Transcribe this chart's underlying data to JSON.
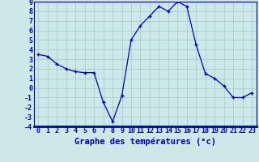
{
  "hours": [
    0,
    1,
    2,
    3,
    4,
    5,
    6,
    7,
    8,
    9,
    10,
    11,
    12,
    13,
    14,
    15,
    16,
    17,
    18,
    19,
    20,
    21,
    22,
    23
  ],
  "temps": [
    3.5,
    3.3,
    2.5,
    2.0,
    1.7,
    1.6,
    1.6,
    -1.5,
    -3.5,
    -0.8,
    5.0,
    6.5,
    7.5,
    8.5,
    8.0,
    9.0,
    8.5,
    4.5,
    1.5,
    1.0,
    0.2,
    -1.0,
    -1.0,
    -0.5
  ],
  "line_color": "#0000bb",
  "marker_color": "#0000bb",
  "bg_color": "#cce8e8",
  "grid_color": "#aacccc",
  "axis_label_color": "#0000bb",
  "xlabel": "Graphe des températures (°c)",
  "ylim": [
    -4,
    9
  ],
  "yticks": [
    -4,
    -3,
    -2,
    -1,
    0,
    1,
    2,
    3,
    4,
    5,
    6,
    7,
    8,
    9
  ],
  "xticks": [
    0,
    1,
    2,
    3,
    4,
    5,
    6,
    7,
    8,
    9,
    10,
    11,
    12,
    13,
    14,
    15,
    16,
    17,
    18,
    19,
    20,
    21,
    22,
    23
  ],
  "xlabel_fontsize": 7.5,
  "tick_fontsize": 6,
  "figsize": [
    3.2,
    2.0
  ],
  "dpi": 100
}
